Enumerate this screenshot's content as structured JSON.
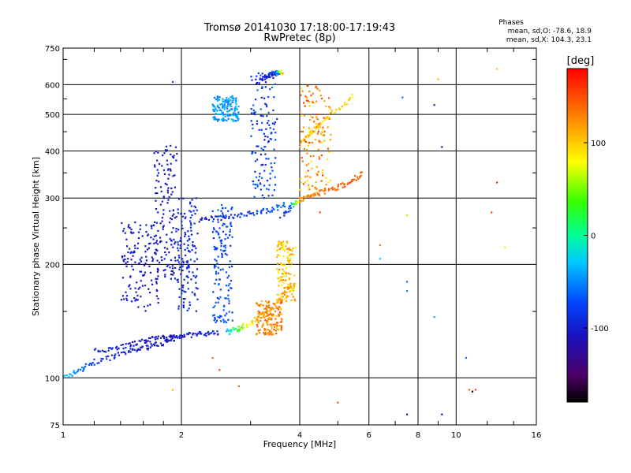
{
  "chart_data": {
    "type": "scatter",
    "title": "Tromsø 20141030 17:18:00-17:19:43",
    "subtitle": "RwPretec (8p)",
    "xlabel": "Frequency [MHz]",
    "ylabel": "Stationary phase Virtual Height [km]",
    "x_scale": "log",
    "y_scale": "log",
    "xlim": [
      1,
      16
    ],
    "ylim": [
      75,
      750
    ],
    "x_ticks": [
      1,
      2,
      4,
      6,
      8,
      10,
      16
    ],
    "x_tick_labels": [
      "1",
      "2",
      "4",
      "6",
      "8",
      "10",
      "16"
    ],
    "y_ticks": [
      75,
      100,
      200,
      300,
      400,
      500,
      600,
      750
    ],
    "y_tick_labels": [
      "75",
      "100",
      "200",
      "300",
      "400",
      "500",
      "600",
      "750"
    ],
    "grid": true,
    "stats": {
      "heading": "Phases",
      "line_o": "mean, sd,O: -78.6, 18.9",
      "line_x": "mean, sd,X: 104.3, 23.1"
    },
    "colorbar": {
      "label": "[deg]",
      "range": [
        -180,
        180
      ],
      "ticks": [
        100,
        0,
        -100
      ],
      "tick_labels": [
        "100",
        "0",
        "-100"
      ]
    },
    "traces": [
      {
        "f": [
          1.0,
          1.1,
          1.2,
          1.35,
          1.5,
          1.65,
          1.8,
          1.95
        ],
        "h": [
          100,
          105,
          110,
          114,
          118,
          121,
          124,
          127
        ],
        "phase": [
          -30,
          -60,
          -80,
          -95,
          -100,
          -105,
          -110,
          -110
        ]
      },
      {
        "f": [
          1.2,
          1.35,
          1.5,
          1.65,
          1.8,
          1.95,
          2.1,
          2.3,
          2.5
        ],
        "h": [
          118,
          120,
          123,
          126,
          128,
          129,
          130,
          131,
          132
        ],
        "phase": [
          -90,
          -100,
          -105,
          -110,
          -110,
          -105,
          -100,
          -95,
          -90
        ]
      },
      {
        "f": [
          2.6,
          2.8,
          3.0,
          3.2,
          3.4,
          3.6,
          3.8
        ],
        "h": [
          132,
          135,
          140,
          146,
          154,
          164,
          178
        ],
        "phase": [
          -40,
          40,
          90,
          110,
          120,
          125,
          130
        ]
      },
      {
        "f": [
          3.6,
          3.8,
          4.0,
          4.3,
          4.6,
          5.0,
          5.4,
          5.8
        ],
        "h": [
          270,
          285,
          298,
          305,
          312,
          320,
          332,
          350
        ],
        "phase": [
          -100,
          -60,
          120,
          130,
          135,
          140,
          145,
          140
        ]
      },
      {
        "f": [
          2.2,
          2.5,
          2.8,
          3.1,
          3.4,
          3.7
        ],
        "h": [
          262,
          266,
          270,
          275,
          280,
          288
        ],
        "phase": [
          -110,
          -100,
          -90,
          -80,
          -70,
          -60
        ]
      },
      {
        "f": [
          4.0,
          4.3,
          4.6,
          5.0,
          5.5
        ],
        "h": [
          420,
          450,
          480,
          520,
          560
        ],
        "phase": [
          110,
          105,
          100,
          95,
          90
        ]
      },
      {
        "f": [
          3.2,
          3.3,
          3.4,
          3.5,
          3.6
        ],
        "h": [
          620,
          630,
          640,
          645,
          650
        ],
        "phase": [
          -100,
          -105,
          -110,
          -95,
          130
        ]
      }
    ],
    "clusters": [
      {
        "f": [
          1.7,
          1.95
        ],
        "h": [
          180,
          420
        ],
        "phase": [
          -115,
          -95
        ]
      },
      {
        "f": [
          1.95,
          2.2
        ],
        "h": [
          150,
          300
        ],
        "phase": [
          -105,
          -85
        ]
      },
      {
        "f": [
          2.4,
          2.7
        ],
        "h": [
          140,
          290
        ],
        "phase": [
          -95,
          -60
        ]
      },
      {
        "f": [
          2.4,
          2.8
        ],
        "h": [
          480,
          560
        ],
        "phase": [
          -60,
          -30
        ]
      },
      {
        "f": [
          3.0,
          3.5
        ],
        "h": [
          300,
          650
        ],
        "phase": [
          -110,
          -60
        ]
      },
      {
        "f": [
          3.5,
          3.9
        ],
        "h": [
          160,
          230
        ],
        "phase": [
          70,
          130
        ]
      },
      {
        "f": [
          3.1,
          3.6
        ],
        "h": [
          130,
          160
        ],
        "phase": [
          100,
          150
        ]
      },
      {
        "f": [
          4.0,
          4.8
        ],
        "h": [
          310,
          600
        ],
        "phase": [
          80,
          160
        ]
      },
      {
        "f": [
          1.4,
          1.75
        ],
        "h": [
          150,
          260
        ],
        "phase": [
          -115,
          -95
        ]
      }
    ],
    "isolated": [
      {
        "f": 4.5,
        "h": 275,
        "phase": 150
      },
      {
        "f": 5.0,
        "h": 86,
        "phase": 150
      },
      {
        "f": 6.4,
        "h": 225,
        "phase": 130
      },
      {
        "f": 6.4,
        "h": 207,
        "phase": -30
      },
      {
        "f": 7.5,
        "h": 270,
        "phase": 60
      },
      {
        "f": 7.5,
        "h": 180,
        "phase": -60
      },
      {
        "f": 7.5,
        "h": 170,
        "phase": -50
      },
      {
        "f": 7.5,
        "h": 80,
        "phase": -150
      },
      {
        "f": 7.3,
        "h": 555,
        "phase": -60
      },
      {
        "f": 8.8,
        "h": 530,
        "phase": -100
      },
      {
        "f": 9.0,
        "h": 620,
        "phase": 105
      },
      {
        "f": 9.2,
        "h": 410,
        "phase": -110
      },
      {
        "f": 9.2,
        "h": 80,
        "phase": -120
      },
      {
        "f": 8.8,
        "h": 145,
        "phase": -40
      },
      {
        "f": 10.8,
        "h": 93,
        "phase": 140
      },
      {
        "f": 11.0,
        "h": 92,
        "phase": -170
      },
      {
        "f": 11.2,
        "h": 93,
        "phase": 150
      },
      {
        "f": 10.6,
        "h": 113,
        "phase": -60
      },
      {
        "f": 12.7,
        "h": 660,
        "phase": 100
      },
      {
        "f": 12.7,
        "h": 330,
        "phase": 160
      },
      {
        "f": 12.3,
        "h": 275,
        "phase": 150
      },
      {
        "f": 13.3,
        "h": 222,
        "phase": 90
      },
      {
        "f": 1.9,
        "h": 93,
        "phase": 110
      },
      {
        "f": 2.4,
        "h": 113,
        "phase": 140
      },
      {
        "f": 2.5,
        "h": 105,
        "phase": 150
      },
      {
        "f": 2.8,
        "h": 95,
        "phase": 140
      },
      {
        "f": 1.9,
        "h": 610,
        "phase": -80
      }
    ]
  }
}
